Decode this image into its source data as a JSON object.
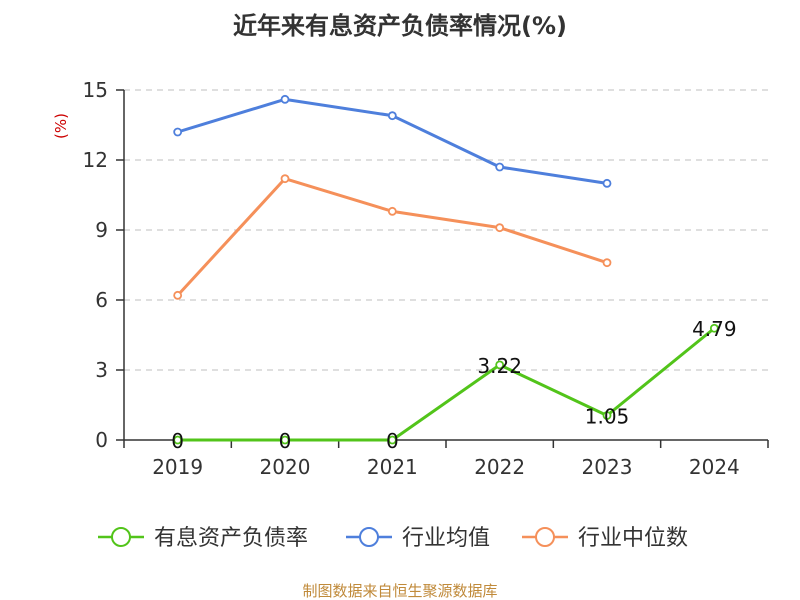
{
  "chart_data": {
    "type": "line",
    "title": "近年来有息资产负债率情况(%)",
    "ylabel": "(%)",
    "categories": [
      "2019",
      "2020",
      "2021",
      "2022",
      "2023",
      "2024"
    ],
    "ylim": [
      0,
      15
    ],
    "yticks": [
      0,
      3,
      6,
      9,
      12,
      15
    ],
    "grid": true,
    "legend_position": "bottom",
    "series": [
      {
        "name": "有息资产负债率",
        "color": "#52c41a",
        "values": [
          0,
          0,
          0,
          3.22,
          1.05,
          4.79
        ],
        "labels": [
          "0",
          "0",
          "0",
          "3.22",
          "1.05",
          "4.79"
        ]
      },
      {
        "name": "行业均值",
        "color": "#4e7fdc",
        "values": [
          13.2,
          14.6,
          13.9,
          11.7,
          11.0,
          null
        ]
      },
      {
        "name": "行业中位数",
        "color": "#f5905a",
        "values": [
          6.2,
          11.2,
          9.8,
          9.1,
          7.6,
          null
        ]
      }
    ]
  },
  "source_text": "制图数据来自恒生聚源数据库",
  "colors": {
    "title": "#333333",
    "ylabel": "#cc0000",
    "source": "#c08a3a",
    "axis": "#333333",
    "grid": "#cccccc"
  }
}
